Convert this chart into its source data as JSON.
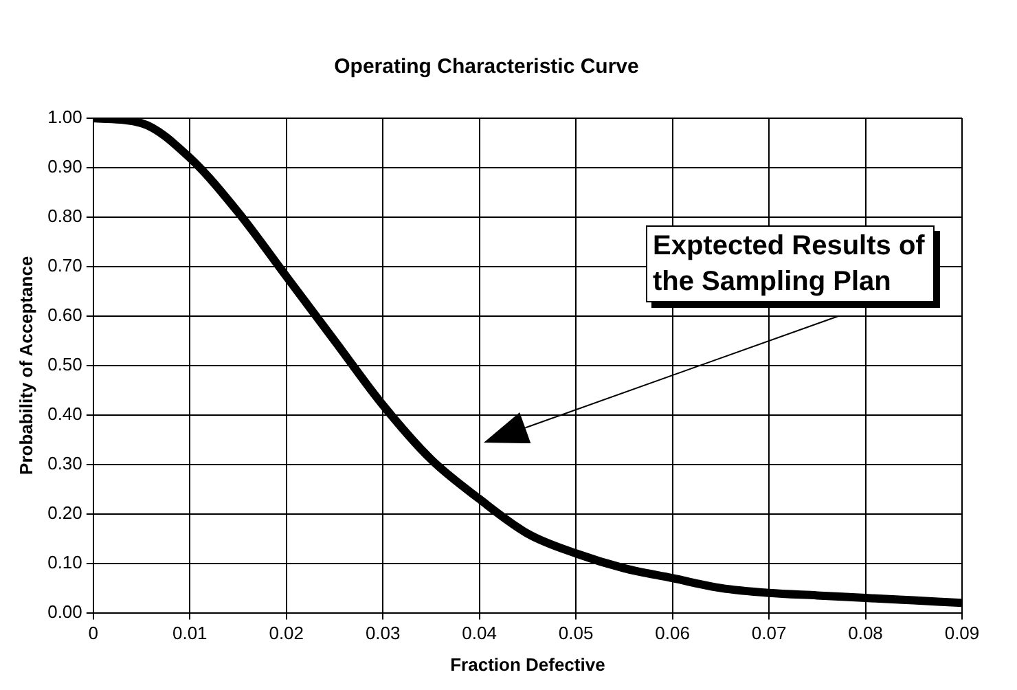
{
  "chart_data": {
    "type": "line",
    "title": "Operating Characteristic Curve",
    "xlabel": "Fraction Defective",
    "ylabel": "Probability of Acceptance",
    "x": [
      0,
      0.005,
      0.01,
      0.015,
      0.02,
      0.025,
      0.03,
      0.035,
      0.04,
      0.045,
      0.05,
      0.055,
      0.06,
      0.065,
      0.07,
      0.075,
      0.08,
      0.085,
      0.09
    ],
    "series": [
      {
        "color": "#000000",
        "values": [
          1.0,
          0.99,
          0.92,
          0.81,
          0.68,
          0.55,
          0.42,
          0.31,
          0.23,
          0.16,
          0.12,
          0.09,
          0.07,
          0.05,
          0.04,
          0.035,
          0.03,
          0.025,
          0.02
        ]
      }
    ],
    "xlim": [
      0,
      0.09
    ],
    "xticks": [
      0,
      0.01,
      0.02,
      0.03,
      0.04,
      0.05,
      0.06,
      0.07,
      0.08,
      0.09
    ],
    "ylim": [
      0,
      1
    ],
    "yticks": [
      {
        "value": 0,
        "label": "0.00"
      },
      {
        "value": 0.1,
        "label": "0.10"
      },
      {
        "value": 0.2,
        "label": "0.20"
      },
      {
        "value": 0.3,
        "label": "0.30"
      },
      {
        "value": 0.4,
        "label": "0.40"
      },
      {
        "value": 0.5,
        "label": "0.50"
      },
      {
        "value": 0.6,
        "label": "0.60"
      },
      {
        "value": 0.7,
        "label": "0.70"
      },
      {
        "value": 0.8,
        "label": "0.80"
      },
      {
        "value": 0.9,
        "label": "0.90"
      },
      {
        "value": 1,
        "label": "1.00"
      }
    ],
    "grid": true,
    "legend": false,
    "marker": "none",
    "line_style": "solid",
    "annotations": [
      "Exptected Results of the Sampling Plan"
    ]
  }
}
